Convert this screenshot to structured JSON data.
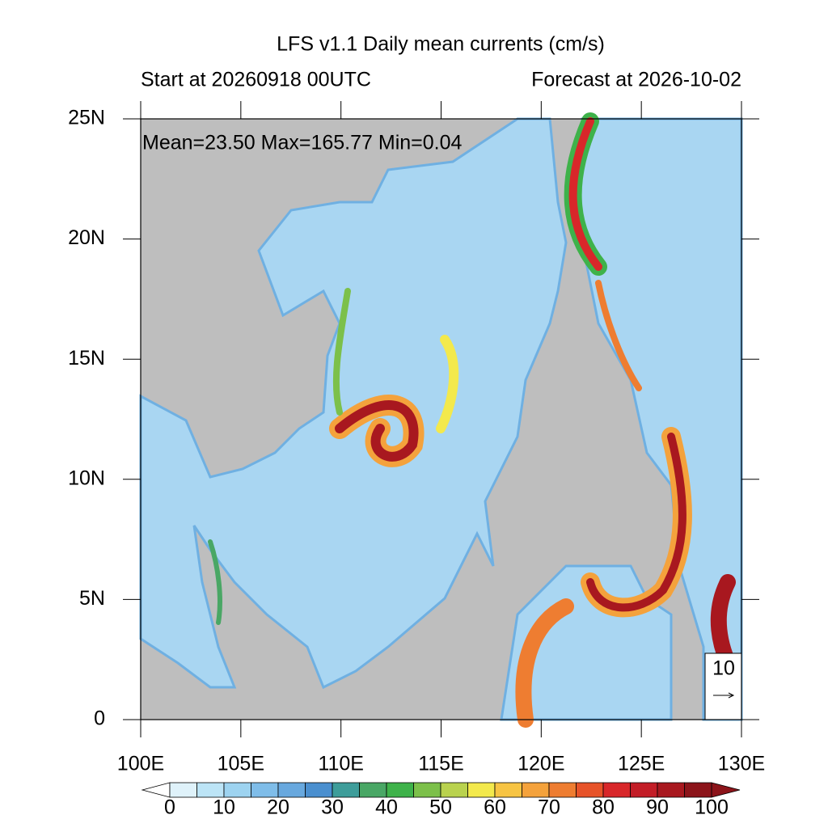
{
  "title": "LFS v1.1 Daily mean currents (cm/s)",
  "subtitle_left": "Start at 20260918 00UTC",
  "subtitle_right": "Forecast at 2026-10-02",
  "stats": "Mean=23.50  Max=165.77  Min=0.04",
  "map": {
    "xlim": [
      100,
      130
    ],
    "ylim": [
      0,
      25
    ],
    "xticks": [
      {
        "value": 100,
        "label": "100E"
      },
      {
        "value": 105,
        "label": "105E"
      },
      {
        "value": 110,
        "label": "110E"
      },
      {
        "value": 115,
        "label": "115E"
      },
      {
        "value": 120,
        "label": "120E"
      },
      {
        "value": 125,
        "label": "125E"
      },
      {
        "value": 130,
        "label": "130E"
      }
    ],
    "yticks": [
      0,
      {
        "value": 5,
        "label": "5N"
      },
      {
        "value": 10,
        "label": "10N"
      },
      {
        "value": 15,
        "label": "15N"
      },
      {
        "value": 20,
        "label": "20N"
      },
      {
        "value": 25,
        "label": "25N"
      }
    ],
    "land_color": "#bebebe"
  },
  "reference_vector": {
    "label": "10"
  },
  "colorbar": {
    "clim": [
      0,
      100
    ],
    "ticks": [
      0,
      10,
      20,
      30,
      40,
      50,
      60,
      70,
      80,
      90,
      100
    ],
    "colors": [
      "#dff2fa",
      "#bce4f6",
      "#9dd3f0",
      "#7fbde9",
      "#68a8de",
      "#4a8fcf",
      "#3e9d9a",
      "#49a765",
      "#3eb24a",
      "#7cc04a",
      "#b9d24e",
      "#f3e94c",
      "#f7c443",
      "#f4a23c",
      "#ee7d31",
      "#e75329",
      "#d8272a",
      "#c31d27",
      "#a8181f",
      "#8c141a"
    ],
    "under_color": "#ffffff",
    "over_color": "#8c141a"
  }
}
